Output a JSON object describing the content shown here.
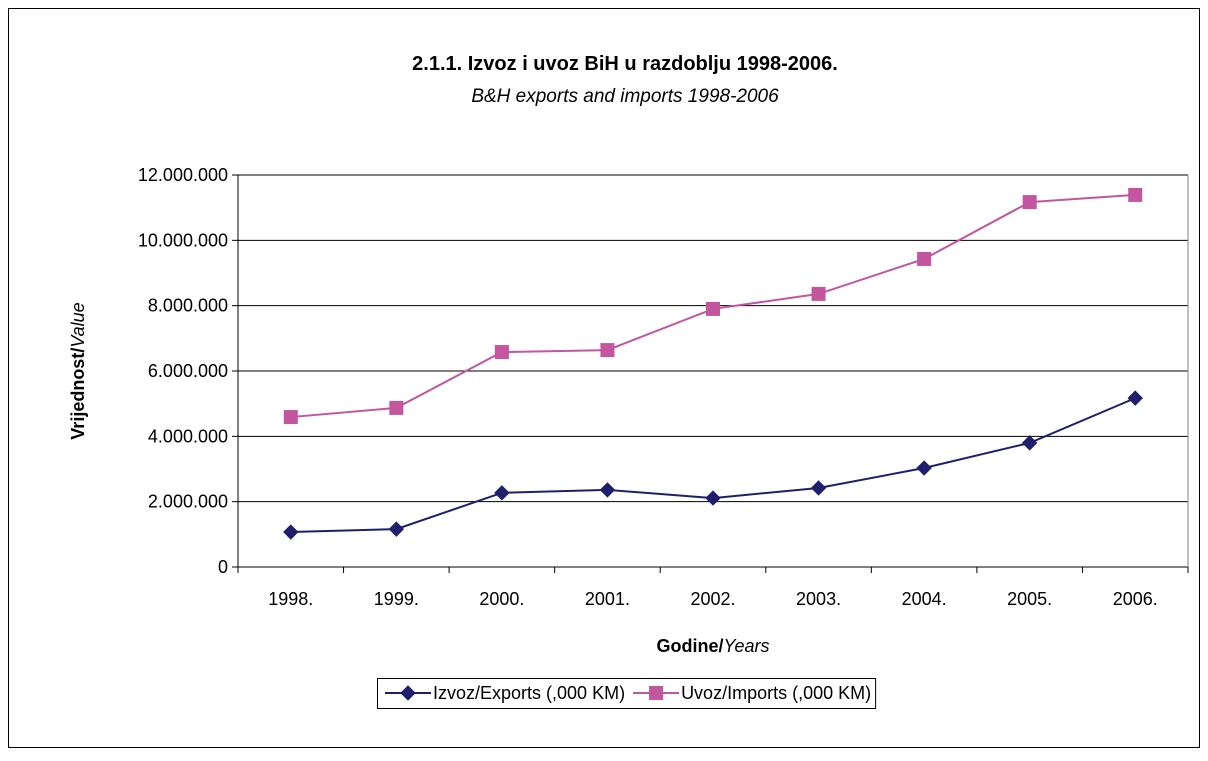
{
  "chart_data": {
    "type": "line",
    "title": "2.1.1. Izvoz i uvoz BiH u razdoblju 1998-2006.",
    "subtitle": "B&H exports and imports 1998-2006",
    "y_label": [
      "Vrijednost/",
      "Value"
    ],
    "x_label": [
      "Godine/",
      "Years"
    ],
    "categories": [
      "1998.",
      "1999.",
      "2000.",
      "2001.",
      "2002.",
      "2003.",
      "2004.",
      "2005.",
      "2006."
    ],
    "series": [
      {
        "name": "Izvoz/Exports (,000 KM)",
        "color": "#1f1f6e",
        "marker": "diamond",
        "values": [
          1070000,
          1160000,
          2270000,
          2360000,
          2110000,
          2420000,
          3030000,
          3800000,
          5170000
        ]
      },
      {
        "name": "Uvoz/Imports (,000 KM)",
        "color": "#c4559f",
        "marker": "square",
        "values": [
          4590000,
          4870000,
          6580000,
          6640000,
          7900000,
          8360000,
          9430000,
          11170000,
          11390000
        ]
      }
    ],
    "ylim": [
      0,
      12000000
    ],
    "yticks": [
      0,
      {
        "value": 2000000,
        "label": "2.000.000"
      },
      {
        "value": 4000000,
        "label": "4.000.000"
      },
      {
        "value": 6000000,
        "label": "6.000.000"
      },
      {
        "value": 8000000,
        "label": "8.000.000"
      },
      {
        "value": 10000000,
        "label": "10.000.000"
      },
      {
        "value": 12000000,
        "label": "12.000.000"
      }
    ],
    "grid": true,
    "legend": "bottom"
  }
}
